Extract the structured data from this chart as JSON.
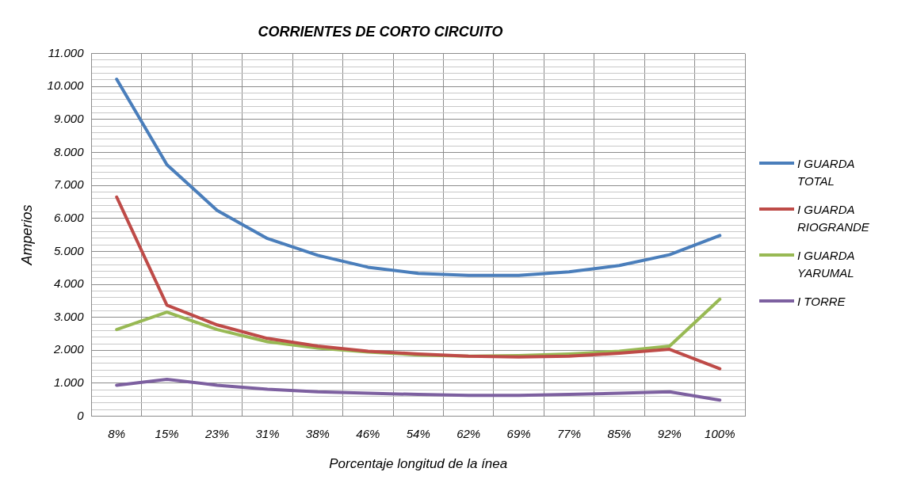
{
  "chart_data": {
    "type": "line",
    "title": "CORRIENTES DE CORTO CIRCUITO",
    "xlabel": "Porcentaje longitud de la ínea",
    "ylabel": "Amperios",
    "categories": [
      "8%",
      "15%",
      "23%",
      "31%",
      "38%",
      "46%",
      "54%",
      "62%",
      "69%",
      "77%",
      "85%",
      "92%",
      "100%"
    ],
    "series": [
      {
        "name": "I GUARDA TOTAL",
        "color": "#4a7ebb",
        "values": [
          10220,
          7630,
          6240,
          5390,
          4880,
          4520,
          4330,
          4270,
          4270,
          4380,
          4570,
          4900,
          5480
        ]
      },
      {
        "name": "I GUARDA RIOGRANDE",
        "color": "#be4b48",
        "values": [
          6650,
          3370,
          2770,
          2360,
          2130,
          1970,
          1890,
          1820,
          1800,
          1820,
          1910,
          2030,
          1440
        ]
      },
      {
        "name": "I GUARDA YARUMAL",
        "color": "#98b954",
        "values": [
          2630,
          3160,
          2630,
          2260,
          2070,
          1950,
          1860,
          1820,
          1840,
          1890,
          1970,
          2130,
          3550
        ]
      },
      {
        "name": "I TORRE",
        "color": "#7d60a0",
        "values": [
          940,
          1120,
          940,
          820,
          740,
          700,
          660,
          630,
          630,
          660,
          700,
          740,
          490
        ]
      }
    ],
    "ylim": [
      0,
      11000
    ],
    "yticks": [
      {
        "value": 0,
        "label": "0"
      },
      {
        "value": 200,
        "label": null
      },
      {
        "value": 400,
        "label": null
      },
      {
        "value": 600,
        "label": null
      },
      {
        "value": 800,
        "label": null
      },
      {
        "value": 1000,
        "label": "1.000"
      },
      {
        "value": 1200,
        "label": null
      },
      {
        "value": 1400,
        "label": null
      },
      {
        "value": 1600,
        "label": null
      },
      {
        "value": 1800,
        "label": null
      },
      {
        "value": 2000,
        "label": "2.000"
      },
      {
        "value": 2200,
        "label": null
      },
      {
        "value": 2400,
        "label": null
      },
      {
        "value": 2600,
        "label": null
      },
      {
        "value": 2800,
        "label": null
      },
      {
        "value": 3000,
        "label": "3.000"
      },
      {
        "value": 3200,
        "label": null
      },
      {
        "value": 3400,
        "label": null
      },
      {
        "value": 3600,
        "label": null
      },
      {
        "value": 3800,
        "label": null
      },
      {
        "value": 4000,
        "label": "4.000"
      },
      {
        "value": 4200,
        "label": null
      },
      {
        "value": 4400,
        "label": null
      },
      {
        "value": 4600,
        "label": null
      },
      {
        "value": 4800,
        "label": null
      },
      {
        "value": 5000,
        "label": "5.000"
      },
      {
        "value": 5200,
        "label": null
      },
      {
        "value": 5400,
        "label": null
      },
      {
        "value": 5600,
        "label": null
      },
      {
        "value": 5800,
        "label": null
      },
      {
        "value": 6000,
        "label": "6.000"
      },
      {
        "value": 6200,
        "label": null
      },
      {
        "value": 6400,
        "label": null
      },
      {
        "value": 6600,
        "label": null
      },
      {
        "value": 6800,
        "label": null
      },
      {
        "value": 7000,
        "label": "7.000"
      },
      {
        "value": 7200,
        "label": null
      },
      {
        "value": 7400,
        "label": null
      },
      {
        "value": 7600,
        "label": null
      },
      {
        "value": 7800,
        "label": null
      },
      {
        "value": 8000,
        "label": "8.000"
      },
      {
        "value": 8200,
        "label": null
      },
      {
        "value": 8400,
        "label": null
      },
      {
        "value": 8600,
        "label": null
      },
      {
        "value": 8800,
        "label": null
      },
      {
        "value": 9000,
        "label": "9.000"
      },
      {
        "value": 9200,
        "label": null
      },
      {
        "value": 9400,
        "label": null
      },
      {
        "value": 9600,
        "label": null
      },
      {
        "value": 9800,
        "label": null
      },
      {
        "value": 10000,
        "label": "10.000"
      },
      {
        "value": 10200,
        "label": null
      },
      {
        "value": 10400,
        "label": null
      },
      {
        "value": 10600,
        "label": null
      },
      {
        "value": 10800,
        "label": null
      },
      {
        "value": 11000,
        "label": "11.000"
      }
    ],
    "grid": true,
    "legend": "right",
    "marker": "none",
    "line_style": "solid"
  }
}
